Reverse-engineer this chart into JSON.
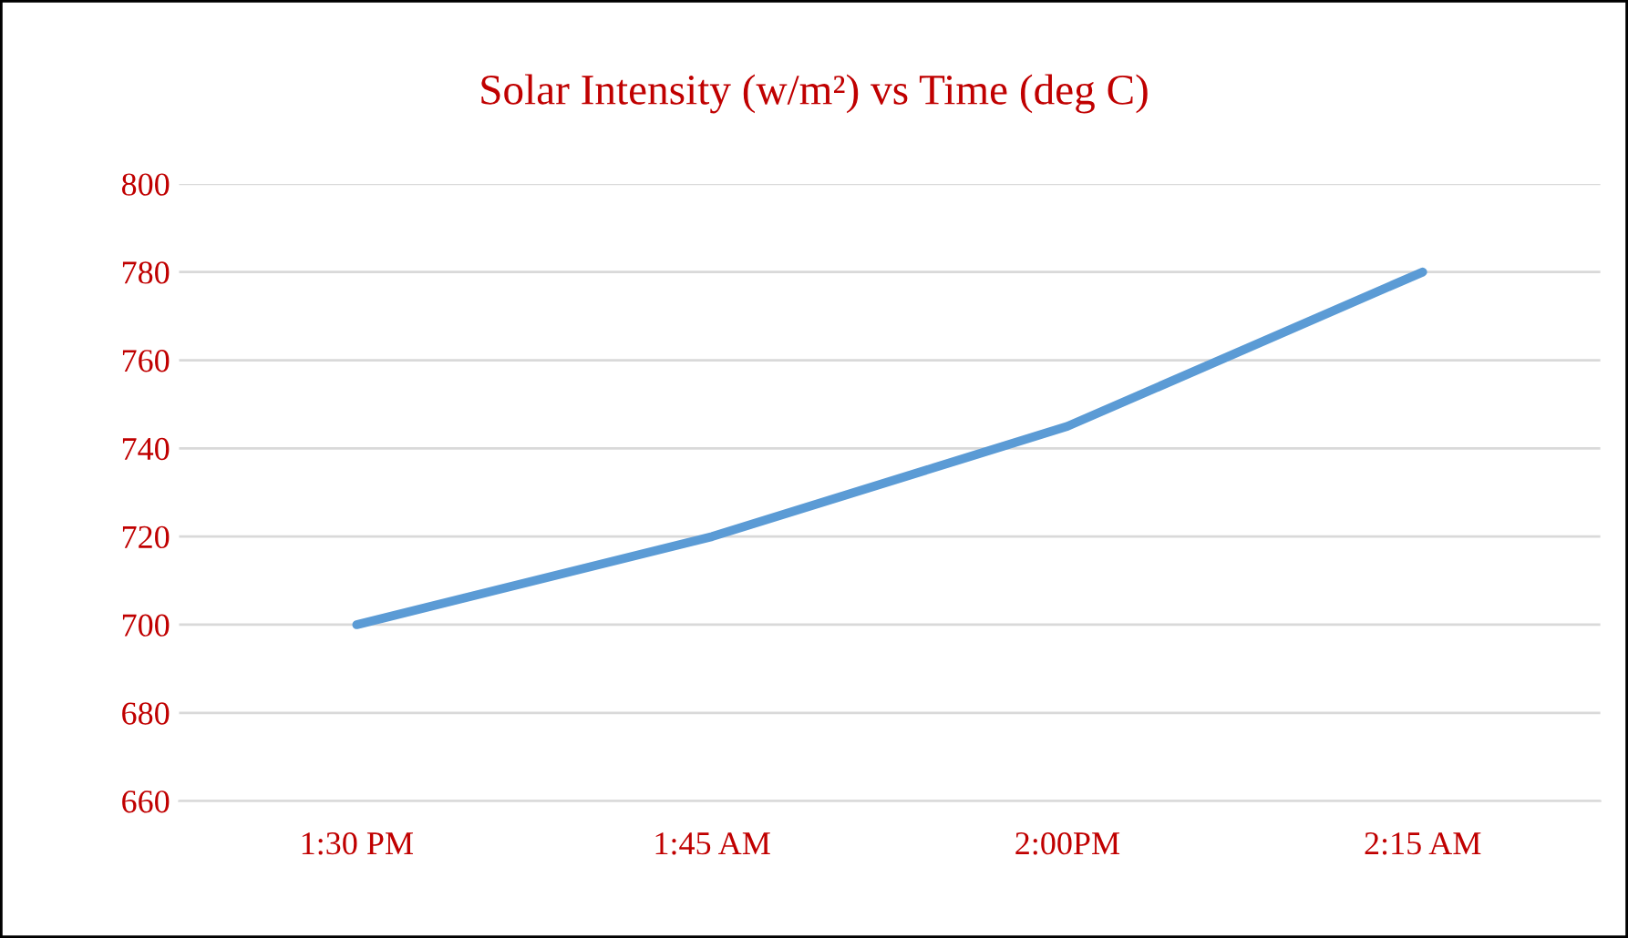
{
  "chart_data": {
    "type": "line",
    "title": "Solar Intensity (w/m²) vs Time (deg C)",
    "categories": [
      "1:30 PM",
      "1:45 AM",
      "2:00PM",
      "2:15 AM"
    ],
    "series": [
      {
        "color": "#5b9bd5",
        "values": [
          700,
          720,
          745,
          780
        ]
      }
    ],
    "ylim": [
      660,
      800
    ],
    "yticks": [
      660,
      680,
      700,
      720,
      740,
      760,
      780,
      800
    ],
    "grid": "y",
    "legend": false,
    "marker": "none",
    "line_style": "solid"
  }
}
